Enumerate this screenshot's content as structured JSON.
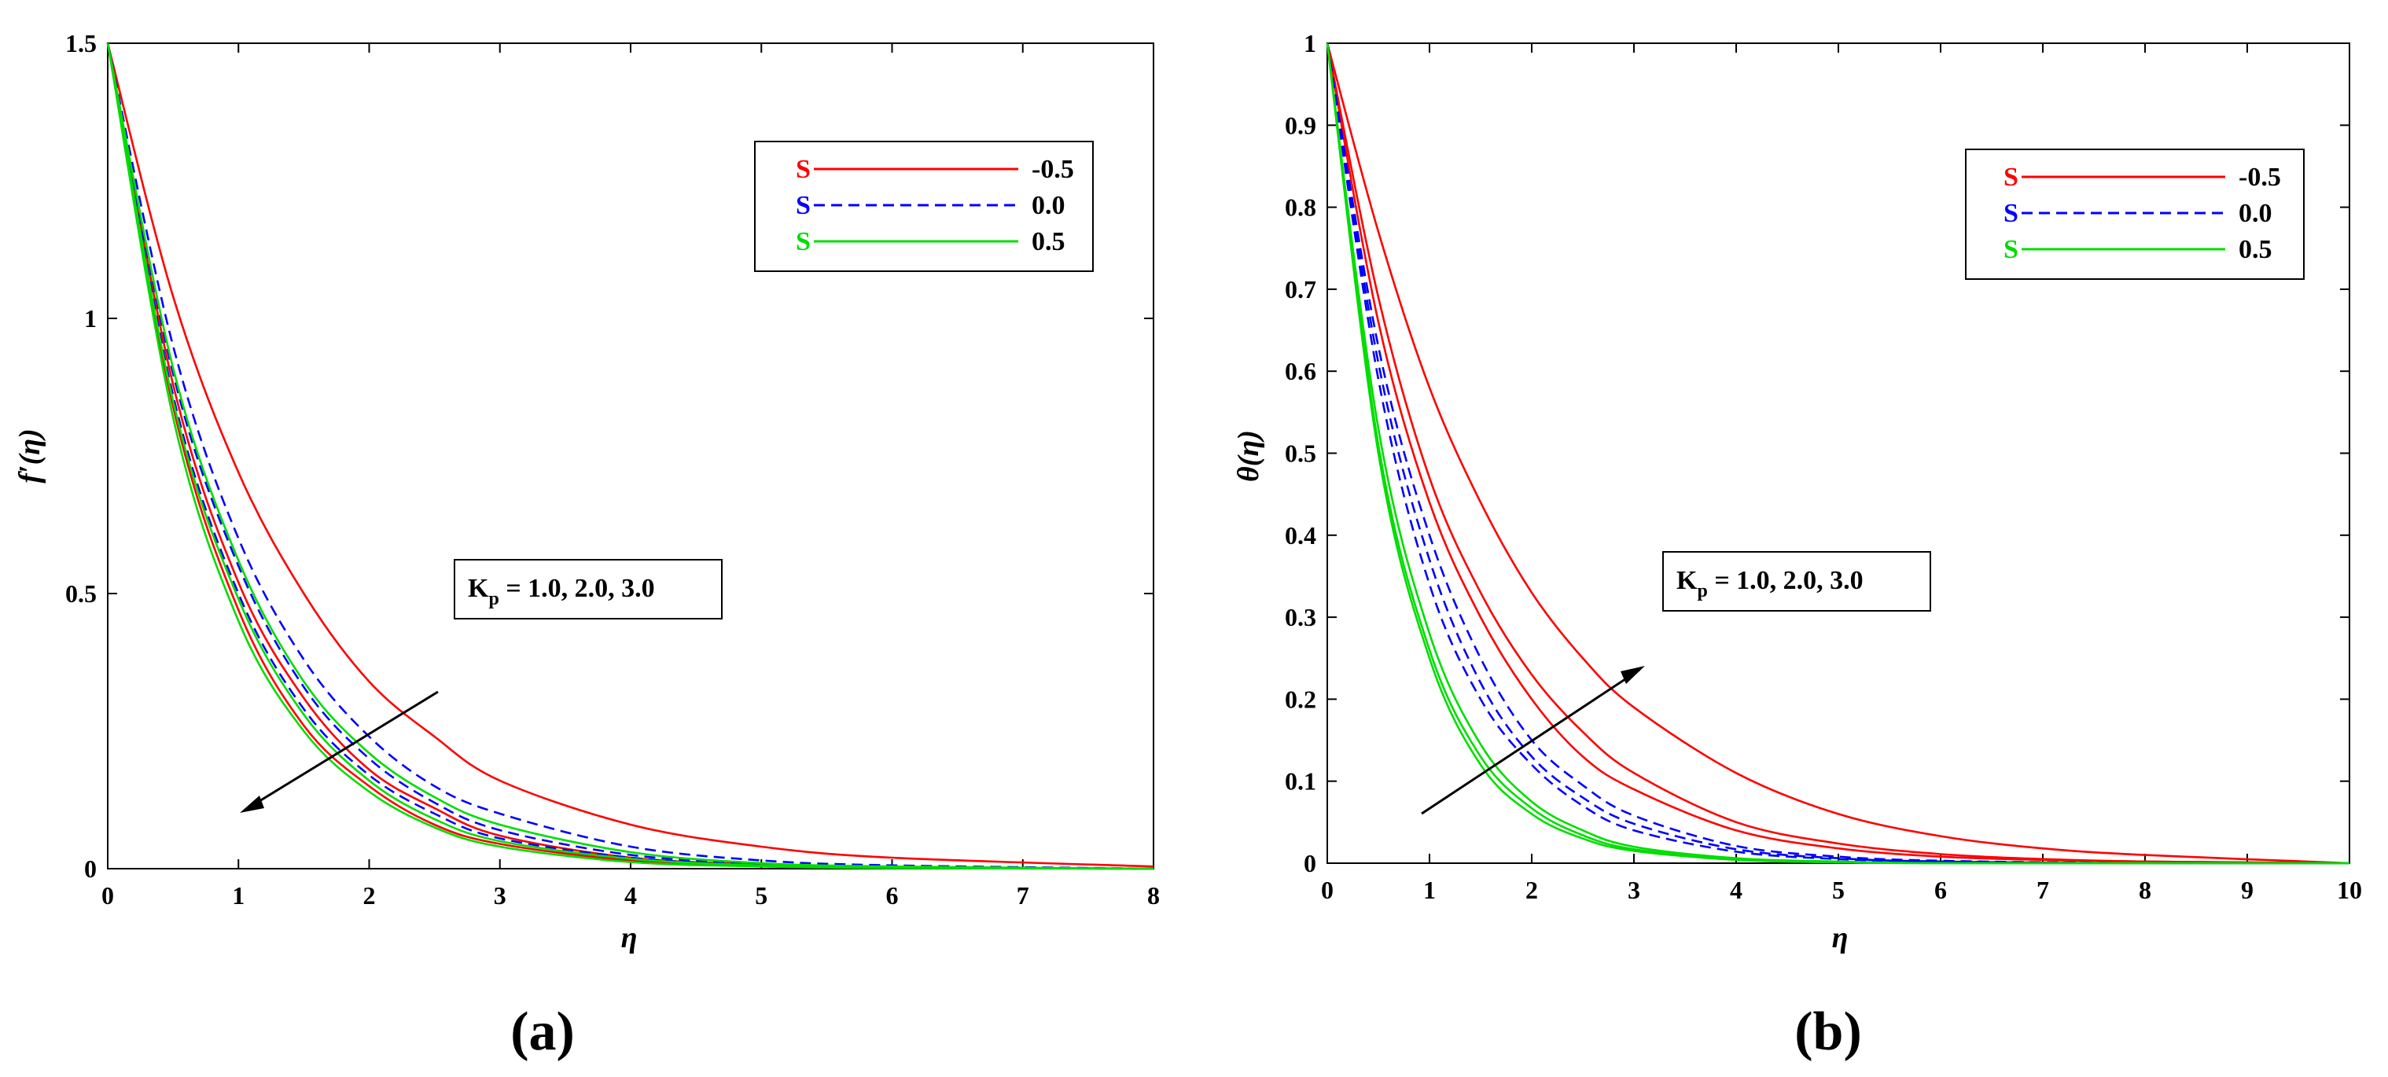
{
  "colors": {
    "red": "#ff0000",
    "blue": "#0000ff",
    "green": "#00dd00",
    "axis": "#000000"
  },
  "chart_data": [
    {
      "type": "line",
      "panel_label": "(a)",
      "xlabel": "η",
      "ylabel": "f′(η)",
      "xlim": [
        0,
        8
      ],
      "ylim": [
        0,
        1.5
      ],
      "x_ticks": [
        "0",
        "1",
        "2",
        "3",
        "4",
        "5",
        "6",
        "7",
        "8"
      ],
      "y_ticks": [
        "0",
        "0.5",
        "1",
        "1.5"
      ],
      "grid": false,
      "legend_position": "top-right",
      "legend": [
        {
          "symbol": "S",
          "value": "-0.5",
          "color": "#ff0000",
          "style": "solid"
        },
        {
          "symbol": "S",
          "value": "0.0",
          "color": "#0000ff",
          "style": "dashed"
        },
        {
          "symbol": "S",
          "value": "0.5",
          "color": "#00dd00",
          "style": "solid"
        }
      ],
      "annotation": {
        "main": "K",
        "sub": "p",
        "rest": " = 1.0, 2.0, 3.0",
        "arrow_direction": "down-left"
      },
      "series": [
        {
          "S": "-0.5",
          "Kp": "1.0",
          "color": "#ff0000",
          "style": "solid",
          "x": [
            0,
            0.5,
            1,
            1.5,
            2,
            2.5,
            3,
            4,
            5,
            6,
            8
          ],
          "y": [
            1.5,
            1.04,
            0.72,
            0.5,
            0.34,
            0.24,
            0.16,
            0.08,
            0.04,
            0.02,
            0.004
          ]
        },
        {
          "S": "-0.5",
          "Kp": "2.0",
          "color": "#ff0000",
          "style": "solid",
          "x": [
            0,
            0.5,
            1,
            1.5,
            2,
            2.5,
            3,
            4,
            5,
            6,
            8
          ],
          "y": [
            1.5,
            0.88,
            0.52,
            0.31,
            0.18,
            0.11,
            0.06,
            0.02,
            0.008,
            0.003,
            0.0
          ]
        },
        {
          "S": "-0.5",
          "Kp": "3.0",
          "color": "#ff0000",
          "style": "solid",
          "x": [
            0,
            0.5,
            1,
            1.5,
            2,
            2.5,
            3,
            4,
            5,
            6,
            8
          ],
          "y": [
            1.5,
            0.84,
            0.47,
            0.26,
            0.15,
            0.08,
            0.045,
            0.015,
            0.005,
            0.002,
            0.0
          ]
        },
        {
          "S": "0.0",
          "Kp": "1.0",
          "color": "#0000ff",
          "style": "dashed",
          "x": [
            0,
            0.5,
            1,
            1.5,
            2,
            2.5,
            3,
            4,
            5,
            6,
            8
          ],
          "y": [
            1.5,
            0.95,
            0.6,
            0.38,
            0.24,
            0.15,
            0.1,
            0.04,
            0.015,
            0.006,
            0.0
          ]
        },
        {
          "S": "0.0",
          "Kp": "2.0",
          "color": "#0000ff",
          "style": "dashed",
          "x": [
            0,
            0.5,
            1,
            1.5,
            2,
            2.5,
            3,
            4,
            5,
            6,
            8
          ],
          "y": [
            1.5,
            0.9,
            0.55,
            0.33,
            0.2,
            0.12,
            0.07,
            0.025,
            0.009,
            0.003,
            0.0
          ]
        },
        {
          "S": "0.0",
          "Kp": "3.0",
          "color": "#0000ff",
          "style": "dashed",
          "x": [
            0,
            0.5,
            1,
            1.5,
            2,
            2.5,
            3,
            4,
            5,
            6,
            8
          ],
          "y": [
            1.5,
            0.86,
            0.5,
            0.29,
            0.17,
            0.1,
            0.055,
            0.02,
            0.006,
            0.002,
            0.0
          ]
        },
        {
          "S": "0.5",
          "Kp": "1.0",
          "color": "#00dd00",
          "style": "solid",
          "x": [
            0,
            0.5,
            1,
            1.5,
            2,
            2.5,
            3,
            4,
            5,
            6,
            8
          ],
          "y": [
            1.5,
            0.91,
            0.56,
            0.34,
            0.21,
            0.13,
            0.08,
            0.03,
            0.01,
            0.004,
            0.0
          ]
        },
        {
          "S": "0.5",
          "Kp": "2.0",
          "color": "#00dd00",
          "style": "solid",
          "x": [
            0,
            0.5,
            1,
            1.5,
            2,
            2.5,
            3,
            4,
            5,
            6,
            8
          ],
          "y": [
            1.5,
            0.85,
            0.49,
            0.28,
            0.16,
            0.09,
            0.05,
            0.018,
            0.006,
            0.002,
            0.0
          ]
        },
        {
          "S": "0.5",
          "Kp": "3.0",
          "color": "#00dd00",
          "style": "solid",
          "x": [
            0,
            0.5,
            1,
            1.5,
            2,
            2.5,
            3,
            4,
            5,
            6,
            8
          ],
          "y": [
            1.5,
            0.82,
            0.45,
            0.25,
            0.14,
            0.075,
            0.04,
            0.012,
            0.004,
            0.001,
            0.0
          ]
        }
      ]
    },
    {
      "type": "line",
      "panel_label": "(b)",
      "xlabel": "η",
      "ylabel": "θ(η)",
      "xlim": [
        0,
        10
      ],
      "ylim": [
        0,
        1
      ],
      "x_ticks": [
        "0",
        "1",
        "2",
        "3",
        "4",
        "5",
        "6",
        "7",
        "8",
        "9",
        "10"
      ],
      "y_ticks": [
        "0",
        "0.1",
        "0.2",
        "0.3",
        "0.4",
        "0.5",
        "0.6",
        "0.7",
        "0.8",
        "0.9",
        "1"
      ],
      "grid": false,
      "legend_position": "top-right",
      "legend": [
        {
          "symbol": "S",
          "value": "-0.5",
          "color": "#ff0000",
          "style": "solid"
        },
        {
          "symbol": "S",
          "value": "0.0",
          "color": "#0000ff",
          "style": "dashed"
        },
        {
          "symbol": "S",
          "value": "0.5",
          "color": "#00dd00",
          "style": "solid"
        }
      ],
      "annotation": {
        "main": "K",
        "sub": "p",
        "rest": " = 1.0, 2.0, 3.0",
        "arrow_direction": "up-right"
      },
      "series": [
        {
          "S": "-0.5",
          "Kp": "1.0",
          "color": "#ff0000",
          "style": "solid",
          "x": [
            0,
            0.5,
            1,
            1.5,
            2,
            2.5,
            3,
            4,
            5,
            6,
            7,
            8,
            10
          ],
          "y": [
            1.0,
            0.66,
            0.44,
            0.3,
            0.2,
            0.13,
            0.09,
            0.04,
            0.018,
            0.008,
            0.004,
            0.002,
            0.0
          ]
        },
        {
          "S": "-0.5",
          "Kp": "2.0",
          "color": "#ff0000",
          "style": "solid",
          "x": [
            0,
            0.5,
            1,
            1.5,
            2,
            2.5,
            3,
            4,
            5,
            6,
            7,
            8,
            10
          ],
          "y": [
            1.0,
            0.69,
            0.47,
            0.33,
            0.23,
            0.16,
            0.11,
            0.05,
            0.024,
            0.011,
            0.005,
            0.002,
            0.0
          ]
        },
        {
          "S": "-0.5",
          "Kp": "3.0",
          "color": "#ff0000",
          "style": "solid",
          "x": [
            0,
            0.5,
            1,
            1.5,
            2,
            2.5,
            3,
            4,
            5,
            6,
            7,
            8,
            10
          ],
          "y": [
            1.0,
            0.77,
            0.58,
            0.44,
            0.33,
            0.25,
            0.19,
            0.11,
            0.06,
            0.033,
            0.018,
            0.01,
            0.0
          ]
        },
        {
          "S": "0.0",
          "Kp": "1.0",
          "color": "#0000ff",
          "style": "dashed",
          "x": [
            0,
            0.5,
            1,
            1.5,
            2,
            2.5,
            3,
            4,
            5,
            6,
            8,
            10
          ],
          "y": [
            1.0,
            0.59,
            0.34,
            0.2,
            0.12,
            0.07,
            0.04,
            0.014,
            0.005,
            0.002,
            0.0,
            0.0
          ]
        },
        {
          "S": "0.0",
          "Kp": "2.0",
          "color": "#0000ff",
          "style": "dashed",
          "x": [
            0,
            0.5,
            1,
            1.5,
            2,
            2.5,
            3,
            4,
            5,
            6,
            8,
            10
          ],
          "y": [
            1.0,
            0.61,
            0.37,
            0.22,
            0.13,
            0.08,
            0.048,
            0.017,
            0.006,
            0.002,
            0.0,
            0.0
          ]
        },
        {
          "S": "0.0",
          "Kp": "3.0",
          "color": "#0000ff",
          "style": "dashed",
          "x": [
            0,
            0.5,
            1,
            1.5,
            2,
            2.5,
            3,
            4,
            5,
            6,
            8,
            10
          ],
          "y": [
            1.0,
            0.63,
            0.4,
            0.25,
            0.15,
            0.095,
            0.058,
            0.021,
            0.008,
            0.003,
            0.0,
            0.0
          ]
        },
        {
          "S": "0.5",
          "Kp": "1.0",
          "color": "#00dd00",
          "style": "solid",
          "x": [
            0,
            0.5,
            1,
            1.5,
            2,
            2.5,
            3,
            4,
            5,
            6,
            8,
            10
          ],
          "y": [
            1.0,
            0.5,
            0.25,
            0.12,
            0.06,
            0.03,
            0.015,
            0.004,
            0.001,
            0.0,
            0.0,
            0.0
          ]
        },
        {
          "S": "0.5",
          "Kp": "2.0",
          "color": "#00dd00",
          "style": "solid",
          "x": [
            0,
            0.5,
            1,
            1.5,
            2,
            2.5,
            3,
            4,
            5,
            6,
            8,
            10
          ],
          "y": [
            1.0,
            0.51,
            0.26,
            0.13,
            0.067,
            0.034,
            0.017,
            0.005,
            0.001,
            0.0,
            0.0,
            0.0
          ]
        },
        {
          "S": "0.5",
          "Kp": "3.0",
          "color": "#00dd00",
          "style": "solid",
          "x": [
            0,
            0.5,
            1,
            1.5,
            2,
            2.5,
            3,
            4,
            5,
            6,
            8,
            10
          ],
          "y": [
            1.0,
            0.53,
            0.28,
            0.145,
            0.075,
            0.04,
            0.02,
            0.006,
            0.002,
            0.0,
            0.0,
            0.0
          ]
        }
      ]
    }
  ]
}
